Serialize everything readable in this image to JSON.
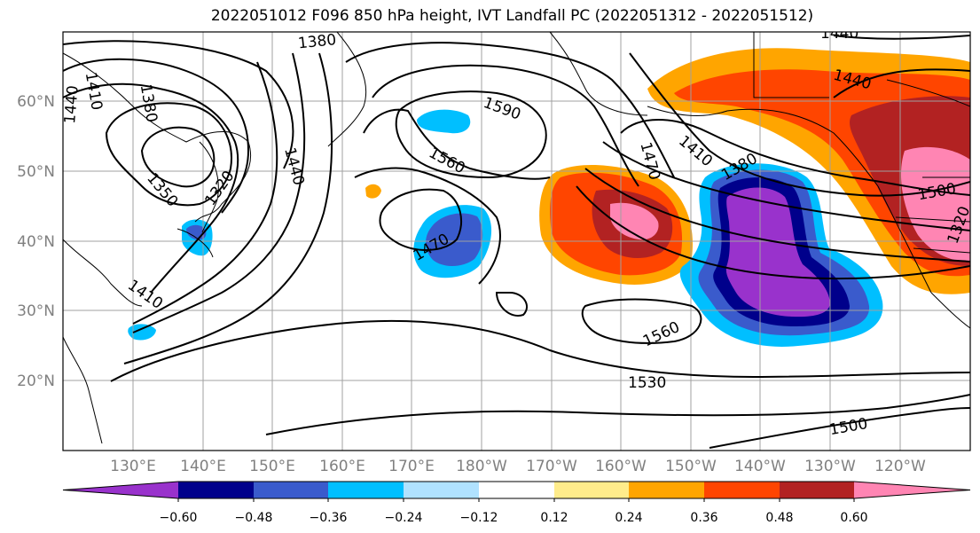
{
  "title": "2022051012 F096 850 hPa height, IVT Landfall PC (2022051312 - 2022051512)",
  "map": {
    "lon_labels": [
      "130°E",
      "140°E",
      "150°E",
      "160°E",
      "170°E",
      "180°W",
      "170°W",
      "160°W",
      "150°W",
      "140°W",
      "130°W",
      "120°W"
    ],
    "lat_labels": [
      "20°N",
      "30°N",
      "40°N",
      "50°N",
      "60°N"
    ],
    "contour_labels": [
      "1380",
      "1410",
      "1440",
      "1380",
      "1350",
      "1320",
      "1440",
      "1410",
      "1590",
      "1560",
      "1470",
      "1470",
      "1410",
      "1380",
      "1440",
      "1440",
      "1500",
      "1320",
      "1560",
      "1530",
      "1500"
    ]
  },
  "colorbar": {
    "ticks": [
      "−0.60",
      "−0.48",
      "−0.36",
      "−0.24",
      "−0.12",
      "0.12",
      "0.24",
      "0.36",
      "0.48",
      "0.60"
    ],
    "colors": [
      "#9932cc",
      "#00008b",
      "#3a5bcc",
      "#00bfff",
      "#b0e2ff",
      "#ffffff",
      "#ffec8b",
      "#ffa500",
      "#ff4500",
      "#b22222",
      "#ff85b3"
    ]
  }
}
